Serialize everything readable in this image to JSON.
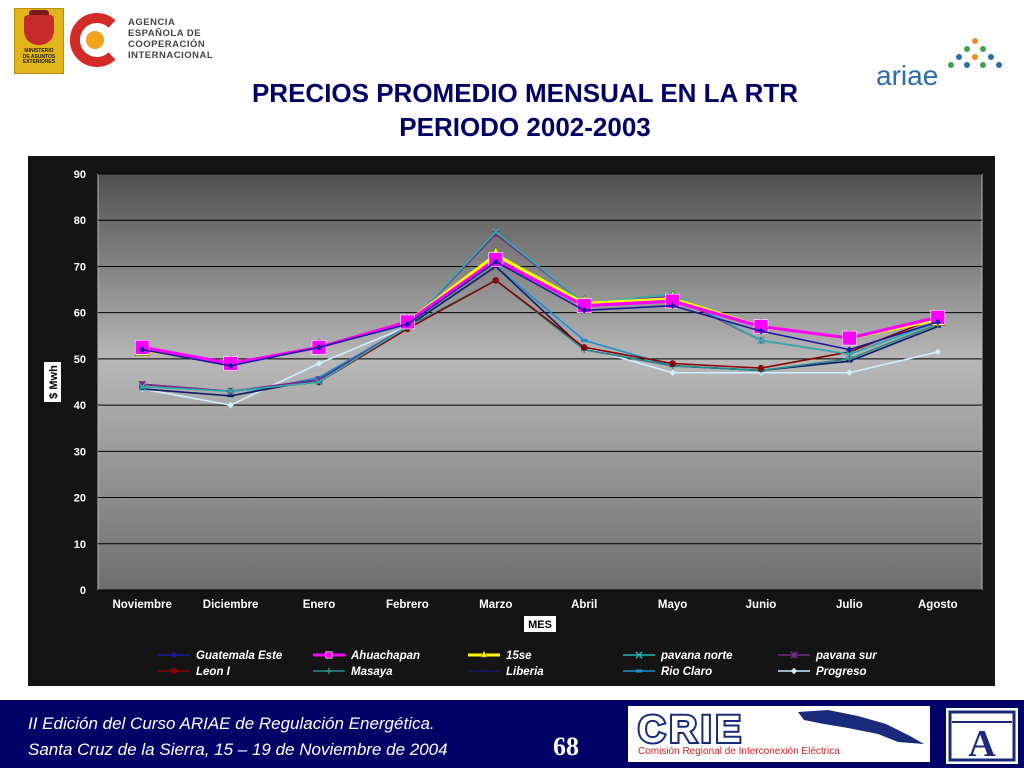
{
  "header": {
    "ministerio_lines": [
      "MINISTERIO",
      "DE ASUNTOS",
      "EXTERIORES"
    ],
    "agency_lines": [
      "AGENCIA",
      "ESPAÑOLA DE",
      "COOPERACIÓN",
      "INTERNACIONAL"
    ],
    "ariae_label": "ariae"
  },
  "title": {
    "line1": "PRECIOS PROMEDIO MENSUAL EN LA RTR",
    "line2": "PERIODO 2002-2003"
  },
  "chart_data": {
    "type": "line",
    "categories": [
      "Noviembre",
      "Diciembre",
      "Enero",
      "Febrero",
      "Marzo",
      "Abril",
      "Mayo",
      "Junio",
      "Julio",
      "Agosto"
    ],
    "xlabel": "MES",
    "ylabel": "$ Mwh",
    "ylim": [
      0,
      90
    ],
    "yticks": [
      0,
      10,
      20,
      30,
      40,
      50,
      60,
      70,
      80,
      90
    ],
    "grid": true,
    "legend_position": "bottom",
    "series": [
      {
        "name": "Guatemala Este",
        "color": "#1a1aa0",
        "marker": "diamond",
        "values": [
          52,
          48.5,
          52.5,
          57.5,
          71,
          60.5,
          61.5,
          56,
          52,
          58
        ]
      },
      {
        "name": "Ahuachapan",
        "color": "#ff00ff",
        "marker": "square",
        "values": [
          52.5,
          49,
          52.5,
          58,
          71.5,
          61.5,
          62.5,
          57,
          54.5,
          59
        ]
      },
      {
        "name": "15se",
        "color": "#ffff00",
        "marker": "triangle",
        "values": [
          52,
          49,
          52.5,
          58,
          72.5,
          62,
          63,
          57,
          54.5,
          58.5
        ]
      },
      {
        "name": "pavana norte",
        "color": "#2ab0b0",
        "marker": "x",
        "values": [
          44,
          43,
          45,
          57,
          77.5,
          62,
          64,
          54,
          51,
          58
        ]
      },
      {
        "name": "pavana sur",
        "color": "#7a2a8a",
        "marker": "star",
        "values": [
          44.5,
          43,
          45.5,
          57,
          77,
          62,
          63.5,
          54,
          51,
          58
        ]
      },
      {
        "name": "Leon I",
        "color": "#8b0000",
        "marker": "circle",
        "values": [
          44.5,
          43,
          45,
          56.5,
          67,
          52.5,
          49,
          48,
          51.5,
          59
        ]
      },
      {
        "name": "Masaya",
        "color": "#2a8a8a",
        "marker": "plus",
        "values": [
          44,
          43,
          45,
          57,
          67,
          52,
          48.5,
          47.5,
          50,
          57.5
        ]
      },
      {
        "name": "Liberia",
        "color": "#1a1a60",
        "marker": "dash",
        "values": [
          43.5,
          42,
          45.5,
          57,
          70,
          52,
          48.5,
          47.5,
          49.5,
          57
        ]
      },
      {
        "name": "Rio Claro",
        "color": "#1a90d0",
        "marker": "bar",
        "values": [
          43.5,
          42,
          46,
          57,
          70,
          54,
          48.5,
          47.5,
          49.5,
          57
        ]
      },
      {
        "name": "Progreso",
        "color": "#d0f0ff",
        "marker": "diamond",
        "values": [
          43.5,
          40,
          49,
          57,
          67,
          52.5,
          47,
          47,
          47,
          51.5
        ]
      }
    ]
  },
  "footer": {
    "line1": "II Edición del Curso ARIAE de Regulación Energética.",
    "line2": "Santa Cruz de la Sierra, 15 – 19  de Noviembre de 2004",
    "page_number": "68",
    "crie_name": "CRIE",
    "crie_subtitle": "Comisión Regional de Interconexión Eléctrica",
    "a_logo_letter": "A"
  }
}
